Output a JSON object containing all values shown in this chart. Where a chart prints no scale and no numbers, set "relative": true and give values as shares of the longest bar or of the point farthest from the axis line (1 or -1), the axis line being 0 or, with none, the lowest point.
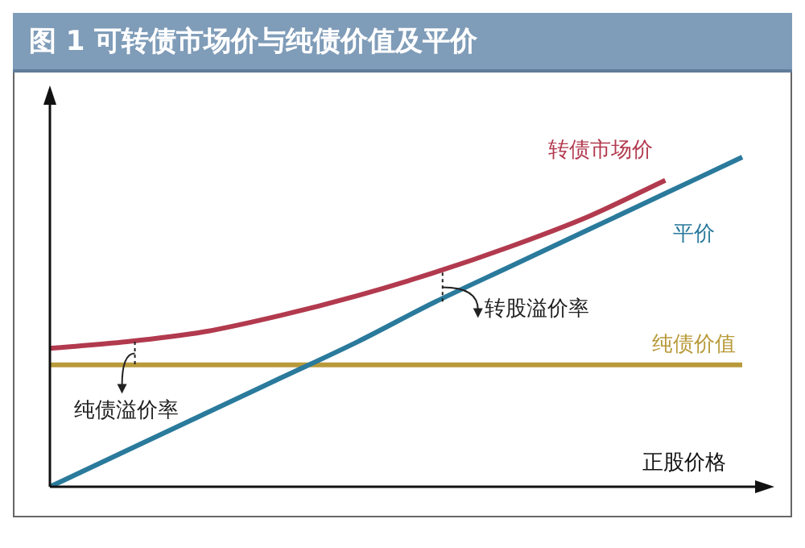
{
  "chart_data": {
    "type": "line",
    "title": "图 1  可转债市场价与纯债价值及平价",
    "xlabel": "正股价格",
    "relative": true,
    "categories": [
      null,
      null,
      null,
      null,
      null,
      null,
      null,
      null,
      null,
      null
    ],
    "series": [
      {
        "name": "转债市场价",
        "color": "#b23a4e",
        "values": [
          0.42,
          0.44,
          0.47,
          0.52,
          0.58,
          0.65,
          0.73,
          0.82,
          0.93,
          null
        ]
      },
      {
        "name": "平价",
        "color": "#2a7a9c",
        "values": [
          0,
          0.11,
          0.22,
          0.33,
          0.44,
          0.56,
          0.67,
          0.78,
          0.89,
          1
        ]
      },
      {
        "name": "纯债价值",
        "color": "#b89a3a",
        "values": [
          0.37,
          0.37,
          0.37,
          0.37,
          0.37,
          0.37,
          0.37,
          0.37,
          0.37,
          0.37
        ]
      }
    ],
    "annotations": [
      "纯债溢价率",
      "转股溢价率"
    ],
    "grid": false,
    "legend": false,
    "marker": "none",
    "line_style": "solid"
  }
}
